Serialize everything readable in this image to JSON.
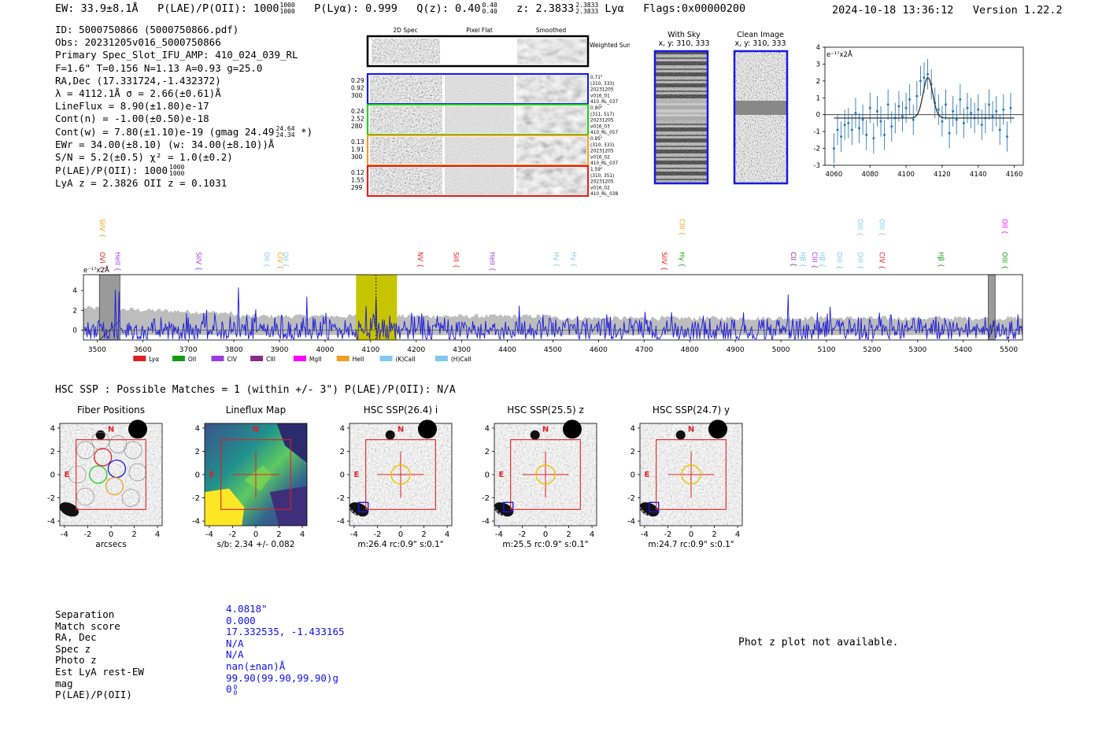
{
  "header": {
    "ew": "EW: 33.9±8.1Å",
    "plae_label": "P(LAE)/P(OII): 1000",
    "plae_sup": "1000",
    "plae_sub": "1000",
    "plya": "P(Lyα): 0.999",
    "qz_label": "Q(z): 0.40",
    "qz_sup": "0.40",
    "qz_sub": "0.40",
    "z_label": "z: 2.3833",
    "z_sup": "2.3833",
    "z_sub": "2.3833",
    "z_line": "Lyα",
    "flags": "Flags:0x00000200",
    "datetime": "2024-10-18 13:36:12",
    "version": "Version 1.22.2"
  },
  "info": {
    "id": "ID: 5000750866 (5000750866.pdf)",
    "obs": "Obs: 20231205v016_5000750866",
    "primary": "Primary Spec_Slot_IFU_AMP: 410_024_039_RL",
    "fparams": "F=1.6\"  T=0.156  N=1.13  A=0.93  g=25.0",
    "radec": "RA,Dec (17.331724,-1.432372)",
    "lambda": "λ = 4112.1Å  σ = 2.66(±0.61)Å",
    "lineflux": "LineFlux = 8.90(±1.80)e-17",
    "contn": "Cont(n) = -1.00(±0.50)e-18",
    "contw": "Cont(w) = 7.80(±1.10)e-19 (gmag 24.49",
    "contw_sup": "24.64",
    "contw_sub": "24.34",
    "contw_end": " *)",
    "ewr": "EWr = 34.00(±8.10) (w: 34.00(±8.10))Å",
    "sn": "S/N = 5.2(±0.5)  χ² = 1.0(±0.2)",
    "plae": "P(LAE)/P(OII): 1000",
    "plae_sup": "1000",
    "plae_sub": "1000",
    "lyaz": "LyA z = 2.3826  OII z = 0.1031"
  },
  "cutouts": {
    "col_headers": [
      "2D Spec",
      "Pixel Flat",
      "Smoothed"
    ],
    "weighted_sum": "Weighted Sum",
    "rows": [
      {
        "left": [
          "0.29",
          "0.92",
          "300"
        ],
        "right": [
          "0.71\"",
          "(310, 333)",
          "20231205",
          "v016_01",
          "410_RL_037"
        ],
        "color": "#1a1adf"
      },
      {
        "left": [
          "0.24",
          "2.52",
          "280"
        ],
        "right": [
          "0.90\"",
          "(311, 517)",
          "20231205",
          "v016_03",
          "410_RL_057"
        ],
        "color": "#22cc22"
      },
      {
        "left": [
          "0.13",
          "1.91",
          "300"
        ],
        "right": [
          "0.95\"",
          "(310, 333)",
          "20231205",
          "v016_02",
          "410_RL_037"
        ],
        "color": "#f0a020"
      },
      {
        "left": [
          "0.12",
          "1.55",
          "299"
        ],
        "right": [
          "1.59\"",
          "(310, 351)",
          "20231205",
          "v016_02",
          "410_RL_038"
        ],
        "color": "#e02020"
      }
    ]
  },
  "sky": {
    "with_sky_title": "With Sky",
    "clean_title": "Clean Image",
    "coords": "x, y: 310, 333"
  },
  "zoom_chart": {
    "type": "line",
    "scale_label": "e⁻¹⁷x2Å",
    "x": [
      4060,
      4062,
      4064,
      4066,
      4068,
      4070,
      4072,
      4074,
      4076,
      4078,
      4080,
      4082,
      4084,
      4086,
      4088,
      4090,
      4092,
      4094,
      4096,
      4098,
      4100,
      4102,
      4104,
      4106,
      4108,
      4110,
      4112,
      4114,
      4116,
      4118,
      4120,
      4122,
      4124,
      4126,
      4128,
      4130,
      4132,
      4134,
      4136,
      4138,
      4140,
      4142,
      4144,
      4146,
      4148,
      4150,
      4152,
      4154,
      4156,
      4158
    ],
    "y": [
      -2.0,
      -0.9,
      -1.3,
      -0.6,
      -0.5,
      -0.9,
      0.1,
      -0.8,
      -0.3,
      -1.2,
      0.4,
      -1.4,
      0.2,
      -0.4,
      -1.2,
      0.6,
      -0.7,
      -0.2,
      0.5,
      -0.1,
      0.4,
      0.9,
      -0.3,
      1.1,
      2.0,
      2.2,
      2.4,
      1.8,
      0.7,
      0.3,
      -0.4,
      0.6,
      -1.1,
      0.2,
      -0.3,
      0.9,
      -0.5,
      0.4,
      0.1,
      -0.2,
      0.3,
      -0.6,
      -0.2,
      0.6,
      -0.1,
      0.2,
      -0.9,
      0.3,
      -1.3,
      0.4
    ],
    "err": 0.9,
    "fit": {
      "center": 4112.1,
      "sigma": 2.66,
      "amplitude": 2.4,
      "baseline": -0.2
    },
    "xlim": [
      4055,
      4165
    ],
    "ylim": [
      -3,
      4
    ],
    "xticks": [
      4060,
      4080,
      4100,
      4120,
      4140,
      4160
    ],
    "yticks": [
      -3,
      -2,
      -1,
      0,
      1,
      2,
      3,
      4
    ]
  },
  "full_spectrum": {
    "type": "line",
    "scale_label": "e⁻¹⁷x2Å",
    "xlim": [
      3470,
      5530
    ],
    "ylim": [
      -1,
      5.6
    ],
    "xticks": [
      3500,
      3600,
      3700,
      3800,
      3900,
      4000,
      4100,
      4200,
      4300,
      4400,
      4500,
      4600,
      4700,
      4800,
      4900,
      5000,
      5100,
      5200,
      5300,
      5400,
      5500
    ],
    "yticks": [
      0,
      2,
      4
    ],
    "highlight": [
      4068,
      4158
    ],
    "line_at": 4112,
    "masks": [
      [
        3505,
        3550
      ],
      [
        5455,
        5470
      ]
    ],
    "peaks": [
      [
        3540,
        4.1
      ],
      [
        3547,
        3.9
      ],
      [
        3810,
        4.3
      ],
      [
        3960,
        3.4
      ],
      [
        4112,
        3.3
      ],
      [
        5015,
        3.6
      ],
      [
        4090,
        2.4
      ]
    ],
    "line_labels": [
      {
        "w": 3501,
        "text": "OVI",
        "color": "#e02020",
        "row": 1
      },
      {
        "w": 3501,
        "text": "SiIV",
        "color": "#f0a020",
        "row": 0
      },
      {
        "w": 3535,
        "text": "HeII",
        "color": "#9b3be0",
        "row": 1
      },
      {
        "w": 3713,
        "text": "SiIV",
        "color": "#9b3be0",
        "row": 1
      },
      {
        "w": 3862,
        "text": "OII",
        "color": "#80c8f0",
        "row": 1
      },
      {
        "w": 3891,
        "text": "CIV",
        "color": "#f0a020",
        "row": 1
      },
      {
        "w": 3903,
        "text": "OII",
        "color": "#80c8f0",
        "row": 1
      },
      {
        "w": 4199,
        "text": "NV",
        "color": "#e02020",
        "row": 1
      },
      {
        "w": 4277,
        "text": "SiII",
        "color": "#e02020",
        "row": 1
      },
      {
        "w": 4357,
        "text": "HeII",
        "color": "#9b3be0",
        "row": 1
      },
      {
        "w": 4497,
        "text": "Hγ",
        "color": "#80c8f0",
        "row": 1
      },
      {
        "w": 4535,
        "text": "Hγ",
        "color": "#80c8f0",
        "row": 1
      },
      {
        "w": 4734,
        "text": "SiIV",
        "color": "#e02020",
        "row": 1
      },
      {
        "w": 4773,
        "text": "Hγ",
        "color": "#139c13",
        "row": 1
      },
      {
        "w": 4773,
        "text": "CIII",
        "color": "#f0a020",
        "row": 0
      },
      {
        "w": 5017,
        "text": "CII",
        "color": "#8a2a8a",
        "row": 1
      },
      {
        "w": 5038,
        "text": "Hβ",
        "color": "#80c8f0",
        "row": 1
      },
      {
        "w": 5064,
        "text": "CIII",
        "color": "#9b3be0",
        "row": 1
      },
      {
        "w": 5080,
        "text": "Hβ",
        "color": "#80c8f0",
        "row": 1
      },
      {
        "w": 5118,
        "text": "OIII",
        "color": "#80c8f0",
        "row": 1
      },
      {
        "w": 5164,
        "text": "OIII",
        "color": "#80c8f0",
        "row": 1
      },
      {
        "w": 5164,
        "text": "OIII",
        "color": "#80c8f0",
        "row": 0
      },
      {
        "w": 5211,
        "text": "CIV",
        "color": "#e02020",
        "row": 1
      },
      {
        "w": 5211,
        "text": "OIII",
        "color": "#80c8f0",
        "row": 0
      },
      {
        "w": 5341,
        "text": "Hβ",
        "color": "#139c13",
        "row": 1
      },
      {
        "w": 5481,
        "text": "OIII",
        "color": "#139c13",
        "row": 1
      },
      {
        "w": 5481,
        "text": "OII",
        "color": "#ff00ff",
        "row": 0
      }
    ],
    "legend": [
      {
        "label": "Lyα",
        "color": "#e02020"
      },
      {
        "label": "OII",
        "color": "#139c13"
      },
      {
        "label": "CIV",
        "color": "#9b3be0"
      },
      {
        "label": "CIII",
        "color": "#8a2a8a"
      },
      {
        "label": "MgII",
        "color": "#ff00ff"
      },
      {
        "label": "HeII",
        "color": "#f0a020"
      },
      {
        "label": "(K)CaII",
        "color": "#80c8f0"
      },
      {
        "label": "(H)CaII",
        "color": "#80c8f0"
      }
    ]
  },
  "hsc": {
    "summary": "HSC SSP : Possible Matches = 1 (within +/- 3\")  P(LAE)/P(OII): N/A",
    "panels": [
      {
        "title": "Fiber Positions",
        "caption": "arcsecs",
        "kind": "fiber"
      },
      {
        "title": "Lineflux Map",
        "caption": "s/b: 2.34 +/- 0.082",
        "kind": "lineflux"
      },
      {
        "title": "HSC SSP(26.4) i",
        "caption": "m:26.4 rc:0.9\"  s:0.1\"",
        "kind": "hsc"
      },
      {
        "title": "HSC SSP(25.5) z",
        "caption": "m:25.5 rc:0.9\"  s:0.1\"",
        "kind": "hsc"
      },
      {
        "title": "HSC SSP(24.7) y",
        "caption": "m:24.7 rc:0.9\"  s:0.1\"",
        "kind": "hsc"
      }
    ],
    "ticks": [
      -4,
      -2,
      0,
      2,
      4
    ],
    "north": "N",
    "east": "E"
  },
  "match_table": {
    "labels": [
      "Separation",
      "Match score",
      "RA, Dec",
      "Spec z",
      "Photo z",
      "Est LyA rest-EW",
      "mag",
      "P(LAE)/P(OII)"
    ],
    "values": [
      "4.0818\"",
      "0.000",
      "17.332535, -1.433165",
      "N/A",
      "N/A",
      "nan(±nan)Å",
      "99.90(99.90,99.90)g",
      "0"
    ],
    "plae_sup": "0",
    "plae_sub": "0"
  },
  "photz_message": "Phot z plot not available."
}
